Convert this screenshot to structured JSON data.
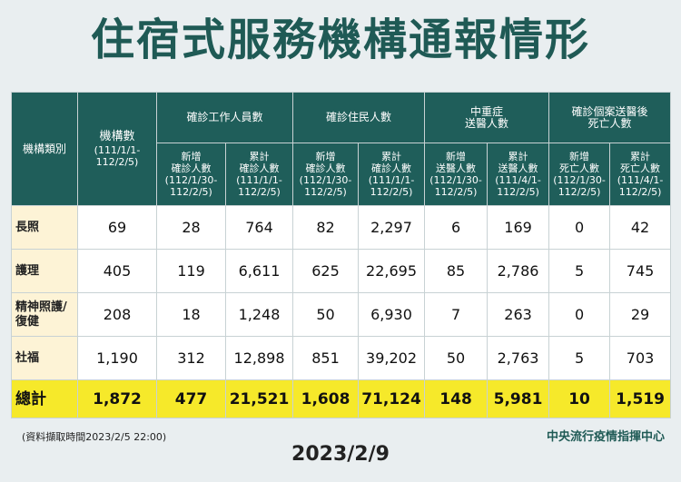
{
  "title": "住宿式服務機構通報情形",
  "headers": {
    "category": "機構類別",
    "institutions": "機構數",
    "institutions_period": "(111/1/1-112/2/5)",
    "staff_group": "確診工作人員數",
    "residents_group": "確診住民人數",
    "severe_group": "中重症\n送醫人數",
    "deaths_group": "確診個案送醫後\n死亡人數",
    "staff_new": "新增\n確診人數\n(112/1/30-\n112/2/5)",
    "staff_cum": "累計\n確診人數\n(111/1/1-\n112/2/5)",
    "res_new": "新增\n確診人數\n(112/1/30-\n112/2/5)",
    "res_cum": "累計\n確診人數\n(111/1/1-\n112/2/5)",
    "sev_new": "新增\n送醫人數\n(112/1/30-\n112/2/5)",
    "sev_cum": "累計\n送醫人數\n(111/4/1-\n112/2/5)",
    "death_new": "新增\n死亡人數\n(112/1/30-\n112/2/5)",
    "death_cum": "累計\n死亡人數\n(111/4/1-\n112/2/5)"
  },
  "rows": [
    {
      "category": "長照",
      "values": [
        "69",
        "28",
        "764",
        "82",
        "2,297",
        "6",
        "169",
        "0",
        "42"
      ]
    },
    {
      "category": "護理",
      "values": [
        "405",
        "119",
        "6,611",
        "625",
        "22,695",
        "85",
        "2,786",
        "5",
        "745"
      ]
    },
    {
      "category": "精神照護/\n復健",
      "values": [
        "208",
        "18",
        "1,248",
        "50",
        "6,930",
        "7",
        "263",
        "0",
        "29"
      ]
    },
    {
      "category": "社福",
      "values": [
        "1,190",
        "312",
        "12,898",
        "851",
        "39,202",
        "50",
        "2,763",
        "5",
        "703"
      ]
    }
  ],
  "total": {
    "category": "總計",
    "values": [
      "1,872",
      "477",
      "21,521",
      "1,608",
      "71,124",
      "148",
      "5,981",
      "10",
      "1,519"
    ]
  },
  "footnote": "(資料擷取時間2023/2/5 22:00)",
  "source": "中央流行疫情指揮中心",
  "date": "2023/2/9",
  "colors": {
    "header_bg": "#1f5e5a",
    "category_bg": "#fdf3d6",
    "total_bg": "#f6e92a",
    "title": "#1f5a55"
  }
}
